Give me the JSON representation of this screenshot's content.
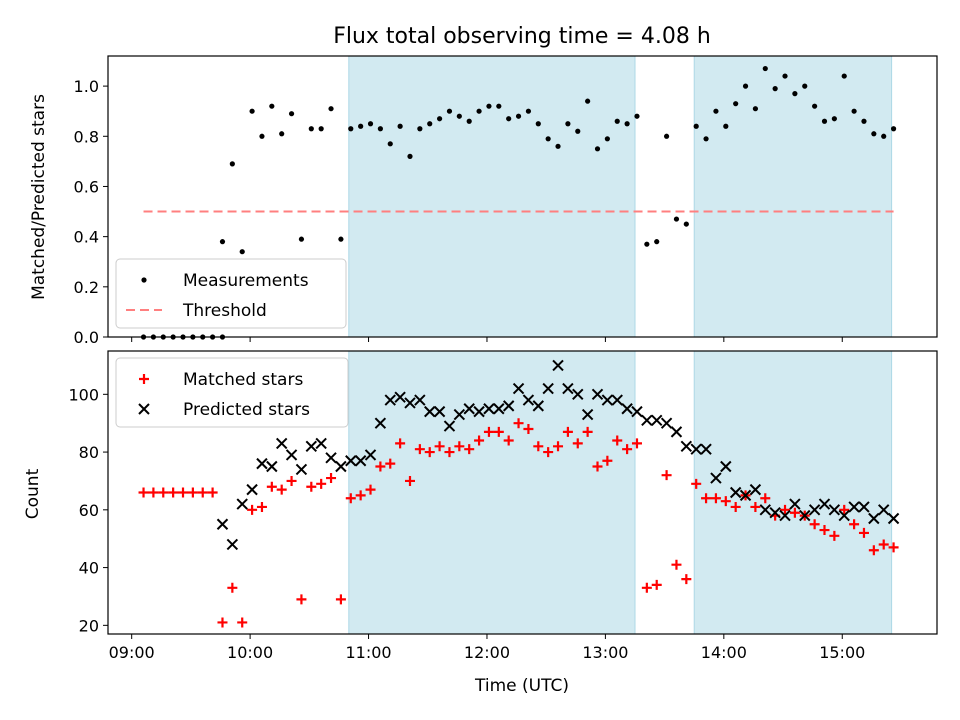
{
  "chart_data": [
    {
      "panel": "top",
      "type": "scatter",
      "title": "Flux total observing time = 4.08 h",
      "ylabel": "Matched/Predicted stars",
      "ylim": [
        0,
        1.12
      ],
      "yticks": [
        0.0,
        0.2,
        0.4,
        0.6,
        0.8,
        1.0
      ],
      "ytick_labels": [
        "0.0",
        "0.2",
        "0.4",
        "0.6",
        "0.8",
        "1.0"
      ],
      "legend": {
        "placement": "lower-left",
        "entries": [
          "Measurements",
          "Threshold"
        ]
      },
      "series": [
        {
          "name": "Measurements",
          "marker": "dot",
          "color": "#000000",
          "points": [
            [
              "09:06",
              0
            ],
            [
              "09:11",
              0
            ],
            [
              "09:16",
              0
            ],
            [
              "09:21",
              0
            ],
            [
              "09:26",
              0
            ],
            [
              "09:31",
              0
            ],
            [
              "09:36",
              0
            ],
            [
              "09:41",
              0
            ],
            [
              "09:46",
              0
            ],
            [
              "09:46",
              0.38
            ],
            [
              "09:51",
              0.69
            ],
            [
              "09:56",
              0.34
            ],
            [
              "10:01",
              0.9
            ],
            [
              "10:06",
              0.8
            ],
            [
              "10:11",
              0.92
            ],
            [
              "10:16",
              0.81
            ],
            [
              "10:21",
              0.89
            ],
            [
              "10:26",
              0.39
            ],
            [
              "10:31",
              0.83
            ],
            [
              "10:36",
              0.83
            ],
            [
              "10:41",
              0.91
            ],
            [
              "10:46",
              0.39
            ],
            [
              "10:51",
              0.83
            ],
            [
              "10:56",
              0.84
            ],
            [
              "11:01",
              0.85
            ],
            [
              "11:06",
              0.83
            ],
            [
              "11:11",
              0.77
            ],
            [
              "11:16",
              0.84
            ],
            [
              "11:21",
              0.72
            ],
            [
              "11:26",
              0.83
            ],
            [
              "11:31",
              0.85
            ],
            [
              "11:36",
              0.87
            ],
            [
              "11:41",
              0.9
            ],
            [
              "11:46",
              0.88
            ],
            [
              "11:51",
              0.86
            ],
            [
              "11:56",
              0.9
            ],
            [
              "12:01",
              0.92
            ],
            [
              "12:06",
              0.92
            ],
            [
              "12:11",
              0.87
            ],
            [
              "12:16",
              0.88
            ],
            [
              "12:21",
              0.9
            ],
            [
              "12:26",
              0.85
            ],
            [
              "12:31",
              0.79
            ],
            [
              "12:36",
              0.76
            ],
            [
              "12:41",
              0.85
            ],
            [
              "12:46",
              0.82
            ],
            [
              "12:51",
              0.94
            ],
            [
              "12:56",
              0.75
            ],
            [
              "13:01",
              0.79
            ],
            [
              "13:06",
              0.86
            ],
            [
              "13:11",
              0.85
            ],
            [
              "13:16",
              0.88
            ],
            [
              "13:21",
              0.37
            ],
            [
              "13:26",
              0.38
            ],
            [
              "13:31",
              0.8
            ],
            [
              "13:36",
              0.47
            ],
            [
              "13:41",
              0.45
            ],
            [
              "13:46",
              0.84
            ],
            [
              "13:51",
              0.79
            ],
            [
              "13:56",
              0.9
            ],
            [
              "14:01",
              0.84
            ],
            [
              "14:06",
              0.93
            ],
            [
              "14:11",
              1.0
            ],
            [
              "14:16",
              0.91
            ],
            [
              "14:21",
              1.07
            ],
            [
              "14:26",
              0.99
            ],
            [
              "14:31",
              1.04
            ],
            [
              "14:36",
              0.97
            ],
            [
              "14:41",
              1.0
            ],
            [
              "14:46",
              0.92
            ],
            [
              "14:51",
              0.86
            ],
            [
              "14:56",
              0.87
            ],
            [
              "15:01",
              1.04
            ],
            [
              "15:06",
              0.9
            ],
            [
              "15:11",
              0.86
            ],
            [
              "15:16",
              0.81
            ],
            [
              "15:21",
              0.8
            ],
            [
              "15:26",
              0.83
            ]
          ]
        },
        {
          "name": "Threshold",
          "type": "line",
          "style": "dashed",
          "color": "#ff7f7f",
          "x": [
            "09:06",
            "15:26"
          ],
          "y": [
            0.5,
            0.5
          ]
        }
      ],
      "shaded_intervals": [
        [
          "10:50",
          "13:15"
        ],
        [
          "13:45",
          "15:25"
        ]
      ],
      "shade_color": "#add8e6"
    },
    {
      "panel": "bottom",
      "type": "scatter",
      "xlabel": "Time (UTC)",
      "ylabel": "Count",
      "ylim": [
        17,
        115
      ],
      "yticks": [
        20,
        40,
        60,
        80,
        100
      ],
      "ytick_labels": [
        "20",
        "40",
        "60",
        "80",
        "100"
      ],
      "xticks": [
        "09:00",
        "10:00",
        "11:00",
        "12:00",
        "13:00",
        "14:00",
        "15:00"
      ],
      "xlim": [
        "08:48",
        "15:48"
      ],
      "legend": {
        "placement": "upper-left",
        "entries": [
          "Matched stars",
          "Predicted stars"
        ]
      },
      "series": [
        {
          "name": "Matched stars",
          "marker": "plus",
          "color": "#ff0000",
          "points": [
            [
              "09:06",
              66
            ],
            [
              "09:11",
              66
            ],
            [
              "09:16",
              66
            ],
            [
              "09:21",
              66
            ],
            [
              "09:26",
              66
            ],
            [
              "09:31",
              66
            ],
            [
              "09:36",
              66
            ],
            [
              "09:41",
              66
            ],
            [
              "09:46",
              21
            ],
            [
              "09:51",
              33
            ],
            [
              "09:56",
              21
            ],
            [
              "10:01",
              60
            ],
            [
              "10:06",
              61
            ],
            [
              "10:11",
              68
            ],
            [
              "10:16",
              67
            ],
            [
              "10:21",
              70
            ],
            [
              "10:26",
              29
            ],
            [
              "10:31",
              68
            ],
            [
              "10:36",
              69
            ],
            [
              "10:41",
              71
            ],
            [
              "10:46",
              29
            ],
            [
              "10:51",
              64
            ],
            [
              "10:56",
              65
            ],
            [
              "11:01",
              67
            ],
            [
              "11:06",
              75
            ],
            [
              "11:11",
              76
            ],
            [
              "11:16",
              83
            ],
            [
              "11:21",
              70
            ],
            [
              "11:26",
              81
            ],
            [
              "11:31",
              80
            ],
            [
              "11:36",
              82
            ],
            [
              "11:41",
              80
            ],
            [
              "11:46",
              82
            ],
            [
              "11:51",
              81
            ],
            [
              "11:56",
              84
            ],
            [
              "12:01",
              87
            ],
            [
              "12:06",
              87
            ],
            [
              "12:11",
              84
            ],
            [
              "12:16",
              90
            ],
            [
              "12:21",
              88
            ],
            [
              "12:26",
              82
            ],
            [
              "12:31",
              80
            ],
            [
              "12:36",
              82
            ],
            [
              "12:41",
              87
            ],
            [
              "12:46",
              83
            ],
            [
              "12:51",
              87
            ],
            [
              "12:56",
              75
            ],
            [
              "13:01",
              77
            ],
            [
              "13:06",
              84
            ],
            [
              "13:11",
              81
            ],
            [
              "13:16",
              83
            ],
            [
              "13:21",
              33
            ],
            [
              "13:26",
              34
            ],
            [
              "13:31",
              72
            ],
            [
              "13:36",
              41
            ],
            [
              "13:41",
              36
            ],
            [
              "13:46",
              69
            ],
            [
              "13:51",
              64
            ],
            [
              "13:56",
              64
            ],
            [
              "14:01",
              63
            ],
            [
              "14:06",
              61
            ],
            [
              "14:11",
              65
            ],
            [
              "14:16",
              61
            ],
            [
              "14:21",
              64
            ],
            [
              "14:26",
              58
            ],
            [
              "14:31",
              60
            ],
            [
              "14:36",
              59
            ],
            [
              "14:41",
              58
            ],
            [
              "14:46",
              55
            ],
            [
              "14:51",
              53
            ],
            [
              "14:56",
              51
            ],
            [
              "15:01",
              60
            ],
            [
              "15:06",
              55
            ],
            [
              "15:11",
              52
            ],
            [
              "15:16",
              46
            ],
            [
              "15:21",
              48
            ],
            [
              "15:26",
              47
            ]
          ]
        },
        {
          "name": "Predicted stars",
          "marker": "x",
          "color": "#000000",
          "points": [
            [
              "09:46",
              55
            ],
            [
              "09:51",
              48
            ],
            [
              "09:56",
              62
            ],
            [
              "10:01",
              67
            ],
            [
              "10:06",
              76
            ],
            [
              "10:11",
              75
            ],
            [
              "10:16",
              83
            ],
            [
              "10:21",
              79
            ],
            [
              "10:26",
              74
            ],
            [
              "10:31",
              82
            ],
            [
              "10:36",
              83
            ],
            [
              "10:41",
              78
            ],
            [
              "10:46",
              75
            ],
            [
              "10:51",
              77
            ],
            [
              "10:56",
              77
            ],
            [
              "11:01",
              79
            ],
            [
              "11:06",
              90
            ],
            [
              "11:11",
              98
            ],
            [
              "11:16",
              99
            ],
            [
              "11:21",
              97
            ],
            [
              "11:26",
              98
            ],
            [
              "11:31",
              94
            ],
            [
              "11:36",
              94
            ],
            [
              "11:41",
              89
            ],
            [
              "11:46",
              93
            ],
            [
              "11:51",
              95
            ],
            [
              "11:56",
              94
            ],
            [
              "12:01",
              95
            ],
            [
              "12:06",
              95
            ],
            [
              "12:11",
              96
            ],
            [
              "12:16",
              102
            ],
            [
              "12:21",
              98
            ],
            [
              "12:26",
              96
            ],
            [
              "12:31",
              102
            ],
            [
              "12:36",
              110
            ],
            [
              "12:41",
              102
            ],
            [
              "12:46",
              100
            ],
            [
              "12:51",
              93
            ],
            [
              "12:56",
              100
            ],
            [
              "13:01",
              98
            ],
            [
              "13:06",
              98
            ],
            [
              "13:11",
              95
            ],
            [
              "13:16",
              94
            ],
            [
              "13:21",
              91
            ],
            [
              "13:26",
              91
            ],
            [
              "13:31",
              90
            ],
            [
              "13:36",
              87
            ],
            [
              "13:41",
              82
            ],
            [
              "13:46",
              81
            ],
            [
              "13:51",
              81
            ],
            [
              "13:56",
              71
            ],
            [
              "14:01",
              75
            ],
            [
              "14:06",
              66
            ],
            [
              "14:11",
              65
            ],
            [
              "14:16",
              67
            ],
            [
              "14:21",
              60
            ],
            [
              "14:26",
              59
            ],
            [
              "14:31",
              58
            ],
            [
              "14:36",
              62
            ],
            [
              "14:41",
              58
            ],
            [
              "14:46",
              60
            ],
            [
              "14:51",
              62
            ],
            [
              "14:56",
              60
            ],
            [
              "15:01",
              58
            ],
            [
              "15:06",
              61
            ],
            [
              "15:11",
              61
            ],
            [
              "15:16",
              57
            ],
            [
              "15:21",
              60
            ],
            [
              "15:26",
              57
            ]
          ]
        }
      ],
      "shaded_intervals": [
        [
          "10:50",
          "13:15"
        ],
        [
          "13:45",
          "15:25"
        ]
      ],
      "shade_color": "#add8e6"
    }
  ]
}
